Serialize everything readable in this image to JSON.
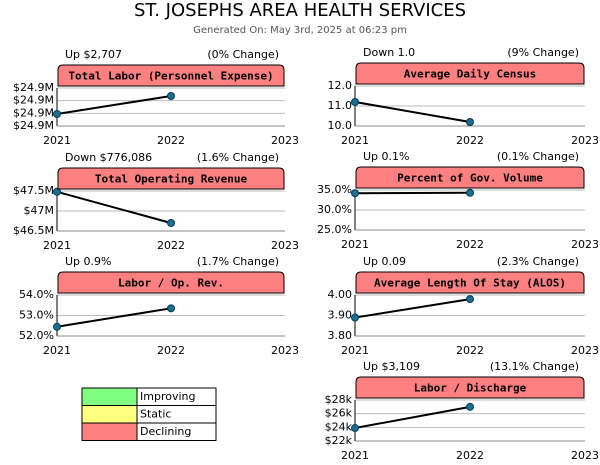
{
  "header": {
    "title": "ST. JOSEPHS AREA HEALTH SERVICES",
    "subtitle": "Generated On: May 3rd, 2025 at 06:23 pm"
  },
  "legend": [
    {
      "label": "Improving",
      "color": "#80ff80"
    },
    {
      "label": "Static",
      "color": "#ffff80"
    },
    {
      "label": "Declining",
      "color": "#ff8080"
    }
  ],
  "chart_data": [
    {
      "type": "line",
      "title": "Total Labor (Personnel Expense)",
      "change": "Up $2,707",
      "change_pct": "(0% Change)",
      "title_color": "#ff8080",
      "line_color": "#000000",
      "marker_color": "#1a7090",
      "categories": [
        "2021",
        "2022",
        "2023"
      ],
      "values": [
        24.8983,
        24.901,
        null
      ],
      "ylim": [
        24.8965,
        24.9022
      ],
      "yticks": [
        {
          "value": 24.8965,
          "label": "$24.9M"
        },
        {
          "value": 24.8984,
          "label": "$24.9M"
        },
        {
          "value": 24.9003,
          "label": "$24.9M"
        },
        {
          "value": 24.9022,
          "label": "$24.9M"
        }
      ],
      "grid": true
    },
    {
      "type": "line",
      "title": "Average Daily Census",
      "change": "Down 1.0",
      "change_pct": "(9% Change)",
      "title_color": "#ff8080",
      "line_color": "#000000",
      "marker_color": "#1a7090",
      "categories": [
        "2021",
        "2022",
        "2023"
      ],
      "values": [
        11.2,
        10.2,
        null
      ],
      "ylim": [
        10,
        12
      ],
      "yticks": [
        {
          "value": 10,
          "label": "10.0"
        },
        {
          "value": 11,
          "label": "11.0"
        },
        {
          "value": 12,
          "label": "12.0"
        }
      ],
      "grid": true
    },
    {
      "type": "line",
      "title": "Total Operating Revenue",
      "change": "Down $776,086",
      "change_pct": "(1.6% Change)",
      "title_color": "#ff8080",
      "line_color": "#000000",
      "marker_color": "#1a7090",
      "categories": [
        "2021",
        "2022",
        "2023"
      ],
      "values": [
        47.48,
        46.7,
        null
      ],
      "ylim": [
        46.5,
        47.5
      ],
      "yticks": [
        {
          "value": 46.5,
          "label": "$46.5M"
        },
        {
          "value": 47,
          "label": "$47M"
        },
        {
          "value": 47.5,
          "label": "$47.5M"
        }
      ],
      "grid": true
    },
    {
      "type": "line",
      "title": "Percent of Gov. Volume",
      "change": "Up 0.1%",
      "change_pct": "(0.1% Change)",
      "title_color": "#ff8080",
      "line_color": "#000000",
      "marker_color": "#1a7090",
      "categories": [
        "2021",
        "2022",
        "2023"
      ],
      "values": [
        34.2,
        34.3,
        null
      ],
      "ylim": [
        25,
        35
      ],
      "yticks": [
        {
          "value": 25,
          "label": "25.0%"
        },
        {
          "value": 30,
          "label": "30.0%"
        },
        {
          "value": 35,
          "label": "35.0%"
        }
      ],
      "grid": true
    },
    {
      "type": "line",
      "title": "Labor / Op. Rev.",
      "change": "Up 0.9%",
      "change_pct": "(1.7% Change)",
      "title_color": "#ff8080",
      "line_color": "#000000",
      "marker_color": "#1a7090",
      "categories": [
        "2021",
        "2022",
        "2023"
      ],
      "values": [
        52.45,
        53.35,
        null
      ],
      "ylim": [
        52,
        54
      ],
      "yticks": [
        {
          "value": 52,
          "label": "52.0%"
        },
        {
          "value": 53,
          "label": "53.0%"
        },
        {
          "value": 54,
          "label": "54.0%"
        }
      ],
      "grid": true
    },
    {
      "type": "line",
      "title": "Average Length Of Stay (ALOS)",
      "change": "Up 0.09",
      "change_pct": "(2.3% Change)",
      "title_color": "#ff8080",
      "line_color": "#000000",
      "marker_color": "#1a7090",
      "categories": [
        "2021",
        "2022",
        "2023"
      ],
      "values": [
        3.89,
        3.98,
        null
      ],
      "ylim": [
        3.8,
        4.0
      ],
      "yticks": [
        {
          "value": 3.8,
          "label": "3.80"
        },
        {
          "value": 3.9,
          "label": "3.90"
        },
        {
          "value": 4.0,
          "label": "4.00"
        }
      ],
      "grid": true
    },
    {
      "type": "line",
      "title": "Labor / Discharge",
      "change": "Up $3,109",
      "change_pct": "(13.1% Change)",
      "title_color": "#ff8080",
      "line_color": "#000000",
      "marker_color": "#1a7090",
      "categories": [
        "2021",
        "2022",
        "2023"
      ],
      "values": [
        23.9,
        27.0,
        null
      ],
      "ylim": [
        22,
        28
      ],
      "yticks": [
        {
          "value": 22,
          "label": "$22k"
        },
        {
          "value": 24,
          "label": "$24k"
        },
        {
          "value": 26,
          "label": "$26k"
        },
        {
          "value": 28,
          "label": "$28k"
        }
      ],
      "grid": true
    }
  ]
}
